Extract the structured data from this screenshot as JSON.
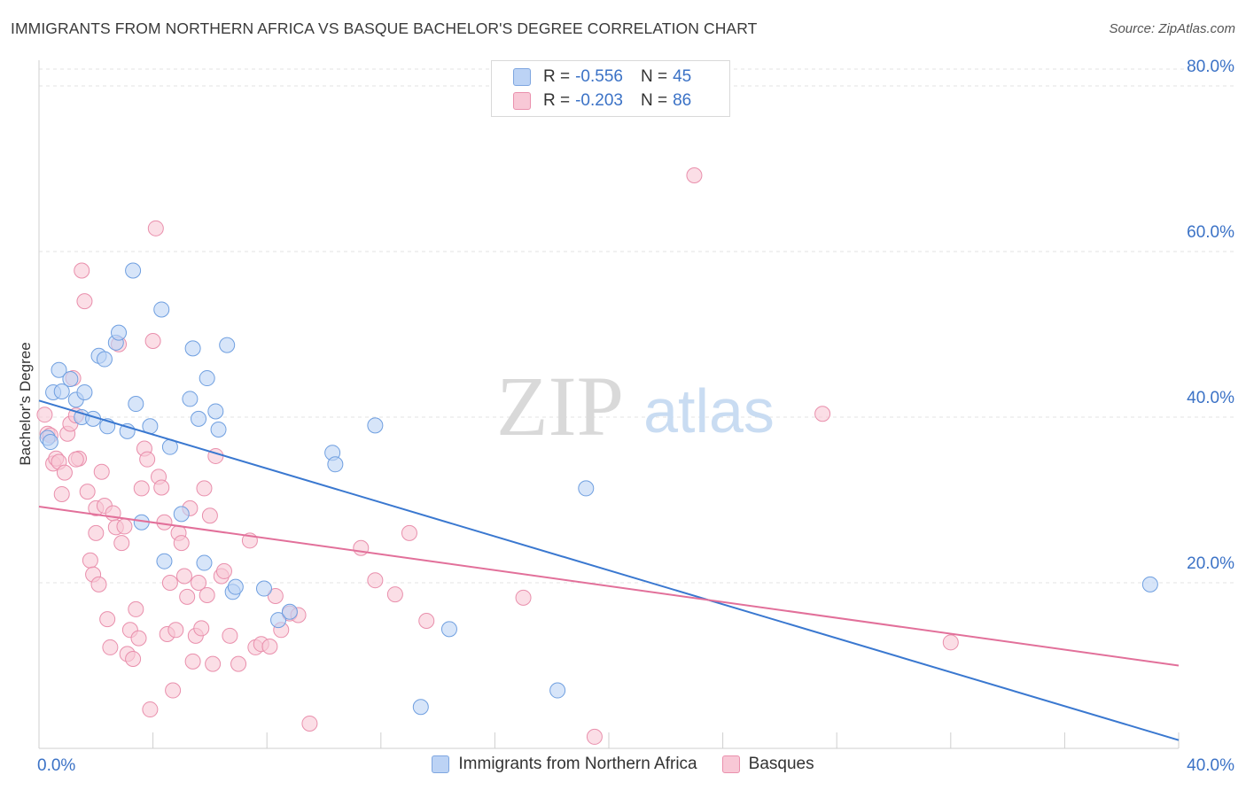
{
  "title": "IMMIGRANTS FROM NORTHERN AFRICA VS BASQUE BACHELOR'S DEGREE CORRELATION CHART",
  "source": "Source: ZipAtlas.com",
  "watermark": {
    "zip": "ZIP",
    "atlas": "atlas"
  },
  "legend": {
    "r_label": "R =",
    "n_label": "N =",
    "rows": [
      {
        "r": "-0.556",
        "n": "45",
        "fill": "#bcd3f5",
        "stroke": "#7ea6e0"
      },
      {
        "r": "-0.203",
        "n": "86",
        "fill": "#f8c8d6",
        "stroke": "#ea90ad"
      }
    ]
  },
  "colors": {
    "blue_fill": "#bcd3f5",
    "blue_stroke": "#6f9fe0",
    "blue_line": "#3a78d0",
    "pink_fill": "#f8c8d6",
    "pink_stroke": "#e98fac",
    "pink_line": "#e2709a",
    "tick_label": "#3b72c6",
    "grid": "#e3e3e3"
  },
  "chart_data": {
    "type": "scatter",
    "title": "IMMIGRANTS FROM NORTHERN AFRICA VS BASQUE BACHELOR'S DEGREE CORRELATION CHART",
    "xlabel": "",
    "ylabel": "Bachelor's Degree",
    "xlim": [
      0,
      40
    ],
    "ylim": [
      0,
      83
    ],
    "x_ticks": [
      0,
      40
    ],
    "x_tick_labels": [
      "0.0%",
      "40.0%"
    ],
    "y_ticks": [
      20,
      40,
      60,
      80
    ],
    "y_tick_labels": [
      "20.0%",
      "40.0%",
      "60.0%",
      "80.0%"
    ],
    "grid": true,
    "legend_position": "top-center",
    "series": [
      {
        "name": "Immigrants from Northern Africa",
        "trend": {
          "x": [
            0,
            40
          ],
          "y": [
            42.0,
            1.0
          ]
        },
        "points": [
          [
            0.3,
            37.5
          ],
          [
            0.4,
            37.0
          ],
          [
            0.5,
            43.0
          ],
          [
            0.7,
            45.7
          ],
          [
            0.8,
            43.1
          ],
          [
            1.1,
            44.6
          ],
          [
            1.3,
            42.1
          ],
          [
            1.5,
            40.0
          ],
          [
            1.6,
            43.0
          ],
          [
            1.9,
            39.8
          ],
          [
            2.1,
            47.4
          ],
          [
            2.3,
            47.0
          ],
          [
            2.4,
            38.9
          ],
          [
            2.7,
            49.0
          ],
          [
            2.8,
            50.2
          ],
          [
            3.1,
            38.3
          ],
          [
            3.3,
            57.7
          ],
          [
            3.4,
            41.6
          ],
          [
            3.6,
            27.3
          ],
          [
            3.9,
            38.9
          ],
          [
            4.3,
            53.0
          ],
          [
            4.4,
            22.6
          ],
          [
            4.6,
            36.4
          ],
          [
            5.0,
            28.3
          ],
          [
            5.3,
            42.2
          ],
          [
            5.4,
            48.3
          ],
          [
            5.6,
            39.8
          ],
          [
            5.8,
            22.4
          ],
          [
            5.9,
            44.7
          ],
          [
            6.2,
            40.7
          ],
          [
            6.3,
            38.5
          ],
          [
            6.6,
            48.7
          ],
          [
            6.8,
            18.9
          ],
          [
            6.9,
            19.5
          ],
          [
            7.9,
            19.3
          ],
          [
            8.4,
            15.5
          ],
          [
            8.8,
            16.5
          ],
          [
            10.3,
            35.7
          ],
          [
            10.4,
            34.3
          ],
          [
            11.8,
            39.0
          ],
          [
            13.4,
            5.0
          ],
          [
            14.4,
            14.4
          ],
          [
            18.2,
            7.0
          ],
          [
            19.2,
            31.4
          ],
          [
            39.0,
            19.8
          ]
        ]
      },
      {
        "name": "Basques",
        "trend": {
          "x": [
            0,
            40
          ],
          "y": [
            29.2,
            10.0
          ]
        },
        "points": [
          [
            0.2,
            40.3
          ],
          [
            0.3,
            38.0
          ],
          [
            0.4,
            37.8
          ],
          [
            0.5,
            34.4
          ],
          [
            0.6,
            35.0
          ],
          [
            0.7,
            34.6
          ],
          [
            0.8,
            30.7
          ],
          [
            0.9,
            33.3
          ],
          [
            1.0,
            38.0
          ],
          [
            1.1,
            39.2
          ],
          [
            1.2,
            44.7
          ],
          [
            1.3,
            40.2
          ],
          [
            1.4,
            35.0
          ],
          [
            1.5,
            57.7
          ],
          [
            1.6,
            54.0
          ],
          [
            1.7,
            31.0
          ],
          [
            1.8,
            22.7
          ],
          [
            1.9,
            21.0
          ],
          [
            2.0,
            29.0
          ],
          [
            2.1,
            19.8
          ],
          [
            2.2,
            33.4
          ],
          [
            2.3,
            29.3
          ],
          [
            2.4,
            15.6
          ],
          [
            2.5,
            12.2
          ],
          [
            2.6,
            28.4
          ],
          [
            2.7,
            26.7
          ],
          [
            2.8,
            48.8
          ],
          [
            2.9,
            24.8
          ],
          [
            3.0,
            26.8
          ],
          [
            3.1,
            11.4
          ],
          [
            3.2,
            14.3
          ],
          [
            3.3,
            10.8
          ],
          [
            3.4,
            16.8
          ],
          [
            3.5,
            13.3
          ],
          [
            3.6,
            31.4
          ],
          [
            3.7,
            36.2
          ],
          [
            3.8,
            34.9
          ],
          [
            3.9,
            4.7
          ],
          [
            4.0,
            49.2
          ],
          [
            4.1,
            62.8
          ],
          [
            4.2,
            32.8
          ],
          [
            4.3,
            31.5
          ],
          [
            4.4,
            27.3
          ],
          [
            4.5,
            13.8
          ],
          [
            4.6,
            20.0
          ],
          [
            4.7,
            7.0
          ],
          [
            4.8,
            14.3
          ],
          [
            4.9,
            26.0
          ],
          [
            5.0,
            24.8
          ],
          [
            5.1,
            20.8
          ],
          [
            5.2,
            18.3
          ],
          [
            5.3,
            29.0
          ],
          [
            5.4,
            10.5
          ],
          [
            5.5,
            13.6
          ],
          [
            5.6,
            20.0
          ],
          [
            5.7,
            14.5
          ],
          [
            5.8,
            31.4
          ],
          [
            5.9,
            18.5
          ],
          [
            6.0,
            28.1
          ],
          [
            6.1,
            10.2
          ],
          [
            6.2,
            35.3
          ],
          [
            6.4,
            20.8
          ],
          [
            6.5,
            21.4
          ],
          [
            6.7,
            13.6
          ],
          [
            7.0,
            10.2
          ],
          [
            7.4,
            25.1
          ],
          [
            7.6,
            12.2
          ],
          [
            7.8,
            12.6
          ],
          [
            8.1,
            12.3
          ],
          [
            8.3,
            18.4
          ],
          [
            8.5,
            14.3
          ],
          [
            8.8,
            16.3
          ],
          [
            9.1,
            16.1
          ],
          [
            9.5,
            3.0
          ],
          [
            11.3,
            24.2
          ],
          [
            11.8,
            20.3
          ],
          [
            12.5,
            18.6
          ],
          [
            13.0,
            26.0
          ],
          [
            13.6,
            15.4
          ],
          [
            17.0,
            18.2
          ],
          [
            19.5,
            1.4
          ],
          [
            23.0,
            69.2
          ],
          [
            27.5,
            40.4
          ],
          [
            32.0,
            12.8
          ],
          [
            1.3,
            34.9
          ],
          [
            2.0,
            26.0
          ]
        ]
      }
    ]
  },
  "axis": {
    "ylabel": "Bachelor's Degree"
  }
}
